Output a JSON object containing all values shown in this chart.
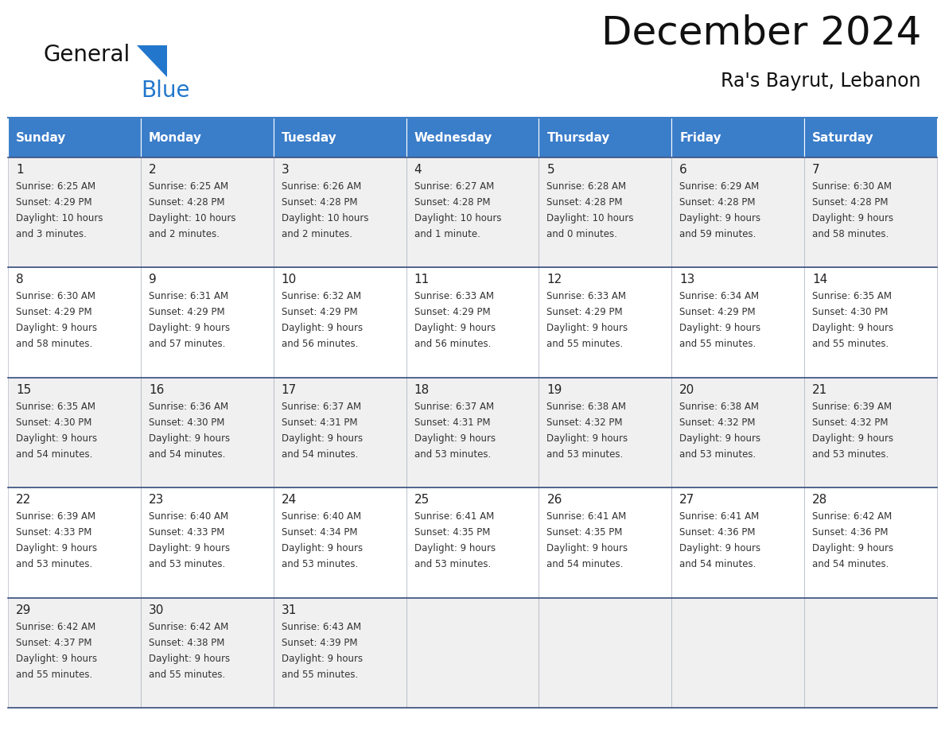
{
  "title": "December 2024",
  "subtitle": "Ra's Bayrut, Lebanon",
  "days_of_week": [
    "Sunday",
    "Monday",
    "Tuesday",
    "Wednesday",
    "Thursday",
    "Friday",
    "Saturday"
  ],
  "header_bg": "#3A7DC9",
  "header_text": "#FFFFFF",
  "row_bg_odd": "#F0F0F0",
  "row_bg_even": "#FFFFFF",
  "cell_border_color": "#A0A8B8",
  "row_border_color": "#3A5080",
  "day_num_color": "#222222",
  "text_color": "#333333",
  "title_color": "#111111",
  "subtitle_color": "#111111",
  "logo_general_color": "#111111",
  "logo_blue_color": "#2277CC",
  "logo_triangle_color": "#2277CC",
  "calendar_data": [
    [
      {
        "day": 1,
        "sunrise": "6:25 AM",
        "sunset": "4:29 PM",
        "daylight_line1": "10 hours",
        "daylight_line2": "and 3 minutes."
      },
      {
        "day": 2,
        "sunrise": "6:25 AM",
        "sunset": "4:28 PM",
        "daylight_line1": "10 hours",
        "daylight_line2": "and 2 minutes."
      },
      {
        "day": 3,
        "sunrise": "6:26 AM",
        "sunset": "4:28 PM",
        "daylight_line1": "10 hours",
        "daylight_line2": "and 2 minutes."
      },
      {
        "day": 4,
        "sunrise": "6:27 AM",
        "sunset": "4:28 PM",
        "daylight_line1": "10 hours",
        "daylight_line2": "and 1 minute."
      },
      {
        "day": 5,
        "sunrise": "6:28 AM",
        "sunset": "4:28 PM",
        "daylight_line1": "10 hours",
        "daylight_line2": "and 0 minutes."
      },
      {
        "day": 6,
        "sunrise": "6:29 AM",
        "sunset": "4:28 PM",
        "daylight_line1": "9 hours",
        "daylight_line2": "and 59 minutes."
      },
      {
        "day": 7,
        "sunrise": "6:30 AM",
        "sunset": "4:28 PM",
        "daylight_line1": "9 hours",
        "daylight_line2": "and 58 minutes."
      }
    ],
    [
      {
        "day": 8,
        "sunrise": "6:30 AM",
        "sunset": "4:29 PM",
        "daylight_line1": "9 hours",
        "daylight_line2": "and 58 minutes."
      },
      {
        "day": 9,
        "sunrise": "6:31 AM",
        "sunset": "4:29 PM",
        "daylight_line1": "9 hours",
        "daylight_line2": "and 57 minutes."
      },
      {
        "day": 10,
        "sunrise": "6:32 AM",
        "sunset": "4:29 PM",
        "daylight_line1": "9 hours",
        "daylight_line2": "and 56 minutes."
      },
      {
        "day": 11,
        "sunrise": "6:33 AM",
        "sunset": "4:29 PM",
        "daylight_line1": "9 hours",
        "daylight_line2": "and 56 minutes."
      },
      {
        "day": 12,
        "sunrise": "6:33 AM",
        "sunset": "4:29 PM",
        "daylight_line1": "9 hours",
        "daylight_line2": "and 55 minutes."
      },
      {
        "day": 13,
        "sunrise": "6:34 AM",
        "sunset": "4:29 PM",
        "daylight_line1": "9 hours",
        "daylight_line2": "and 55 minutes."
      },
      {
        "day": 14,
        "sunrise": "6:35 AM",
        "sunset": "4:30 PM",
        "daylight_line1": "9 hours",
        "daylight_line2": "and 55 minutes."
      }
    ],
    [
      {
        "day": 15,
        "sunrise": "6:35 AM",
        "sunset": "4:30 PM",
        "daylight_line1": "9 hours",
        "daylight_line2": "and 54 minutes."
      },
      {
        "day": 16,
        "sunrise": "6:36 AM",
        "sunset": "4:30 PM",
        "daylight_line1": "9 hours",
        "daylight_line2": "and 54 minutes."
      },
      {
        "day": 17,
        "sunrise": "6:37 AM",
        "sunset": "4:31 PM",
        "daylight_line1": "9 hours",
        "daylight_line2": "and 54 minutes."
      },
      {
        "day": 18,
        "sunrise": "6:37 AM",
        "sunset": "4:31 PM",
        "daylight_line1": "9 hours",
        "daylight_line2": "and 53 minutes."
      },
      {
        "day": 19,
        "sunrise": "6:38 AM",
        "sunset": "4:32 PM",
        "daylight_line1": "9 hours",
        "daylight_line2": "and 53 minutes."
      },
      {
        "day": 20,
        "sunrise": "6:38 AM",
        "sunset": "4:32 PM",
        "daylight_line1": "9 hours",
        "daylight_line2": "and 53 minutes."
      },
      {
        "day": 21,
        "sunrise": "6:39 AM",
        "sunset": "4:32 PM",
        "daylight_line1": "9 hours",
        "daylight_line2": "and 53 minutes."
      }
    ],
    [
      {
        "day": 22,
        "sunrise": "6:39 AM",
        "sunset": "4:33 PM",
        "daylight_line1": "9 hours",
        "daylight_line2": "and 53 minutes."
      },
      {
        "day": 23,
        "sunrise": "6:40 AM",
        "sunset": "4:33 PM",
        "daylight_line1": "9 hours",
        "daylight_line2": "and 53 minutes."
      },
      {
        "day": 24,
        "sunrise": "6:40 AM",
        "sunset": "4:34 PM",
        "daylight_line1": "9 hours",
        "daylight_line2": "and 53 minutes."
      },
      {
        "day": 25,
        "sunrise": "6:41 AM",
        "sunset": "4:35 PM",
        "daylight_line1": "9 hours",
        "daylight_line2": "and 53 minutes."
      },
      {
        "day": 26,
        "sunrise": "6:41 AM",
        "sunset": "4:35 PM",
        "daylight_line1": "9 hours",
        "daylight_line2": "and 54 minutes."
      },
      {
        "day": 27,
        "sunrise": "6:41 AM",
        "sunset": "4:36 PM",
        "daylight_line1": "9 hours",
        "daylight_line2": "and 54 minutes."
      },
      {
        "day": 28,
        "sunrise": "6:42 AM",
        "sunset": "4:36 PM",
        "daylight_line1": "9 hours",
        "daylight_line2": "and 54 minutes."
      }
    ],
    [
      {
        "day": 29,
        "sunrise": "6:42 AM",
        "sunset": "4:37 PM",
        "daylight_line1": "9 hours",
        "daylight_line2": "and 55 minutes."
      },
      {
        "day": 30,
        "sunrise": "6:42 AM",
        "sunset": "4:38 PM",
        "daylight_line1": "9 hours",
        "daylight_line2": "and 55 minutes."
      },
      {
        "day": 31,
        "sunrise": "6:43 AM",
        "sunset": "4:39 PM",
        "daylight_line1": "9 hours",
        "daylight_line2": "and 55 minutes."
      },
      null,
      null,
      null,
      null
    ]
  ]
}
